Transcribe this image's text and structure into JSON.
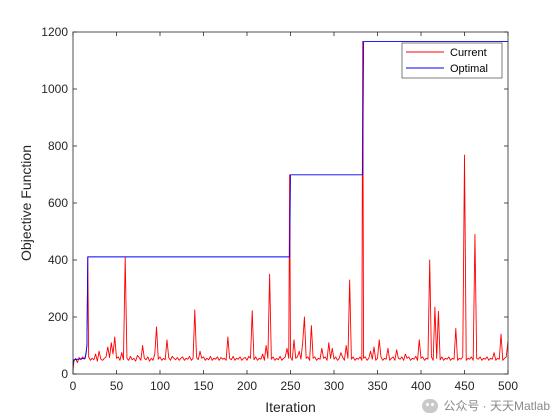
{
  "chart_data": {
    "type": "line",
    "xlabel": "Iteration",
    "ylabel": "Objective Function",
    "xlim": [
      0,
      500
    ],
    "ylim": [
      0,
      1200
    ],
    "xticks": [
      0,
      50,
      100,
      150,
      200,
      250,
      300,
      350,
      400,
      450,
      500
    ],
    "yticks": [
      0,
      200,
      400,
      600,
      800,
      1000,
      1200
    ],
    "legend_position": "top-right",
    "grid": false,
    "series": [
      {
        "name": "Current",
        "color": "#ff0000",
        "points": [
          [
            0,
            10
          ],
          [
            1,
            45
          ],
          [
            3,
            55
          ],
          [
            5,
            40
          ],
          [
            7,
            58
          ],
          [
            9,
            50
          ],
          [
            11,
            60
          ],
          [
            13,
            52
          ],
          [
            15,
            70
          ],
          [
            16,
            100
          ],
          [
            17,
            411
          ],
          [
            18,
            60
          ],
          [
            20,
            48
          ],
          [
            22,
            55
          ],
          [
            24,
            50
          ],
          [
            26,
            70
          ],
          [
            28,
            45
          ],
          [
            30,
            80
          ],
          [
            32,
            52
          ],
          [
            34,
            48
          ],
          [
            36,
            55
          ],
          [
            38,
            60
          ],
          [
            40,
            95
          ],
          [
            42,
            58
          ],
          [
            44,
            110
          ],
          [
            46,
            70
          ],
          [
            48,
            130
          ],
          [
            50,
            55
          ],
          [
            52,
            60
          ],
          [
            54,
            48
          ],
          [
            56,
            75
          ],
          [
            58,
            50
          ],
          [
            60,
            410
          ],
          [
            62,
            55
          ],
          [
            64,
            48
          ],
          [
            66,
            62
          ],
          [
            68,
            50
          ],
          [
            70,
            55
          ],
          [
            72,
            45
          ],
          [
            74,
            65
          ],
          [
            76,
            58
          ],
          [
            78,
            48
          ],
          [
            80,
            100
          ],
          [
            82,
            55
          ],
          [
            84,
            50
          ],
          [
            86,
            60
          ],
          [
            88,
            45
          ],
          [
            90,
            55
          ],
          [
            92,
            48
          ],
          [
            94,
            70
          ],
          [
            96,
            165
          ],
          [
            98,
            52
          ],
          [
            100,
            60
          ],
          [
            102,
            48
          ],
          [
            104,
            55
          ],
          [
            106,
            50
          ],
          [
            108,
            120
          ],
          [
            110,
            58
          ],
          [
            112,
            48
          ],
          [
            114,
            62
          ],
          [
            116,
            55
          ],
          [
            118,
            50
          ],
          [
            120,
            58
          ],
          [
            122,
            48
          ],
          [
            124,
            55
          ],
          [
            126,
            60
          ],
          [
            128,
            48
          ],
          [
            130,
            55
          ],
          [
            132,
            52
          ],
          [
            134,
            62
          ],
          [
            136,
            48
          ],
          [
            138,
            55
          ],
          [
            140,
            225
          ],
          [
            142,
            58
          ],
          [
            144,
            50
          ],
          [
            146,
            80
          ],
          [
            148,
            55
          ],
          [
            150,
            60
          ],
          [
            152,
            48
          ],
          [
            154,
            55
          ],
          [
            156,
            50
          ],
          [
            158,
            62
          ],
          [
            160,
            48
          ],
          [
            162,
            55
          ],
          [
            164,
            52
          ],
          [
            166,
            60
          ],
          [
            168,
            48
          ],
          [
            170,
            58
          ],
          [
            172,
            52
          ],
          [
            174,
            55
          ],
          [
            176,
            48
          ],
          [
            178,
            130
          ],
          [
            180,
            55
          ],
          [
            182,
            50
          ],
          [
            184,
            62
          ],
          [
            186,
            48
          ],
          [
            188,
            55
          ],
          [
            190,
            52
          ],
          [
            192,
            60
          ],
          [
            194,
            48
          ],
          [
            196,
            55
          ],
          [
            198,
            58
          ],
          [
            200,
            48
          ],
          [
            202,
            62
          ],
          [
            204,
            55
          ],
          [
            206,
            222
          ],
          [
            208,
            50
          ],
          [
            210,
            60
          ],
          [
            212,
            48
          ],
          [
            214,
            55
          ],
          [
            216,
            52
          ],
          [
            218,
            70
          ],
          [
            220,
            48
          ],
          [
            222,
            100
          ],
          [
            224,
            55
          ],
          [
            226,
            350
          ],
          [
            228,
            52
          ],
          [
            230,
            60
          ],
          [
            232,
            48
          ],
          [
            234,
            55
          ],
          [
            236,
            50
          ],
          [
            238,
            62
          ],
          [
            240,
            48
          ],
          [
            242,
            55
          ],
          [
            244,
            60
          ],
          [
            246,
            90
          ],
          [
            248,
            55
          ],
          [
            249,
            699
          ],
          [
            250,
            60
          ],
          [
            252,
            48
          ],
          [
            254,
            120
          ],
          [
            256,
            55
          ],
          [
            258,
            60
          ],
          [
            260,
            80
          ],
          [
            262,
            52
          ],
          [
            264,
            110
          ],
          [
            266,
            200
          ],
          [
            268,
            55
          ],
          [
            270,
            60
          ],
          [
            272,
            48
          ],
          [
            274,
            170
          ],
          [
            276,
            55
          ],
          [
            278,
            60
          ],
          [
            280,
            48
          ],
          [
            282,
            55
          ],
          [
            284,
            52
          ],
          [
            286,
            90
          ],
          [
            288,
            55
          ],
          [
            290,
            60
          ],
          [
            292,
            48
          ],
          [
            294,
            110
          ],
          [
            296,
            55
          ],
          [
            298,
            90
          ],
          [
            300,
            52
          ],
          [
            302,
            60
          ],
          [
            304,
            48
          ],
          [
            306,
            55
          ],
          [
            308,
            75
          ],
          [
            310,
            58
          ],
          [
            312,
            48
          ],
          [
            314,
            100
          ],
          [
            316,
            55
          ],
          [
            318,
            330
          ],
          [
            320,
            52
          ],
          [
            322,
            60
          ],
          [
            324,
            48
          ],
          [
            326,
            55
          ],
          [
            328,
            52
          ],
          [
            330,
            60
          ],
          [
            332,
            48
          ],
          [
            333,
            1167
          ],
          [
            334,
            55
          ],
          [
            336,
            60
          ],
          [
            338,
            48
          ],
          [
            340,
            55
          ],
          [
            342,
            80
          ],
          [
            344,
            52
          ],
          [
            346,
            95
          ],
          [
            348,
            48
          ],
          [
            350,
            55
          ],
          [
            352,
            120
          ],
          [
            354,
            60
          ],
          [
            356,
            48
          ],
          [
            358,
            55
          ],
          [
            360,
            52
          ],
          [
            362,
            90
          ],
          [
            364,
            48
          ],
          [
            366,
            55
          ],
          [
            368,
            60
          ],
          [
            370,
            48
          ],
          [
            372,
            85
          ],
          [
            374,
            55
          ],
          [
            376,
            52
          ],
          [
            378,
            60
          ],
          [
            380,
            48
          ],
          [
            382,
            70
          ],
          [
            384,
            55
          ],
          [
            386,
            60
          ],
          [
            388,
            48
          ],
          [
            390,
            55
          ],
          [
            392,
            52
          ],
          [
            394,
            62
          ],
          [
            396,
            48
          ],
          [
            398,
            120
          ],
          [
            400,
            55
          ],
          [
            402,
            60
          ],
          [
            404,
            48
          ],
          [
            406,
            55
          ],
          [
            408,
            52
          ],
          [
            410,
            400
          ],
          [
            412,
            60
          ],
          [
            414,
            48
          ],
          [
            416,
            235
          ],
          [
            418,
            55
          ],
          [
            420,
            220
          ],
          [
            422,
            50
          ],
          [
            424,
            60
          ],
          [
            426,
            48
          ],
          [
            428,
            55
          ],
          [
            430,
            52
          ],
          [
            432,
            60
          ],
          [
            434,
            48
          ],
          [
            436,
            55
          ],
          [
            438,
            52
          ],
          [
            440,
            160
          ],
          [
            442,
            48
          ],
          [
            444,
            55
          ],
          [
            446,
            52
          ],
          [
            448,
            60
          ],
          [
            450,
            768
          ],
          [
            452,
            48
          ],
          [
            454,
            55
          ],
          [
            456,
            52
          ],
          [
            458,
            60
          ],
          [
            460,
            48
          ],
          [
            462,
            490
          ],
          [
            464,
            55
          ],
          [
            466,
            52
          ],
          [
            468,
            60
          ],
          [
            470,
            48
          ],
          [
            472,
            55
          ],
          [
            474,
            52
          ],
          [
            476,
            60
          ],
          [
            478,
            48
          ],
          [
            480,
            55
          ],
          [
            482,
            52
          ],
          [
            484,
            75
          ],
          [
            486,
            48
          ],
          [
            488,
            55
          ],
          [
            490,
            52
          ],
          [
            492,
            140
          ],
          [
            494,
            48
          ],
          [
            496,
            55
          ],
          [
            498,
            60
          ],
          [
            500,
            115
          ]
        ]
      },
      {
        "name": "Optimal",
        "color": "#0000ff",
        "points": [
          [
            0,
            30
          ],
          [
            1,
            50
          ],
          [
            14,
            55
          ],
          [
            15,
            75
          ],
          [
            16,
            100
          ],
          [
            17,
            411
          ],
          [
            249,
            411
          ],
          [
            250,
            699
          ],
          [
            333,
            699
          ],
          [
            334,
            1167
          ],
          [
            500,
            1167
          ]
        ]
      }
    ]
  },
  "watermark": {
    "text": "公众号 · 天天Matlab"
  }
}
